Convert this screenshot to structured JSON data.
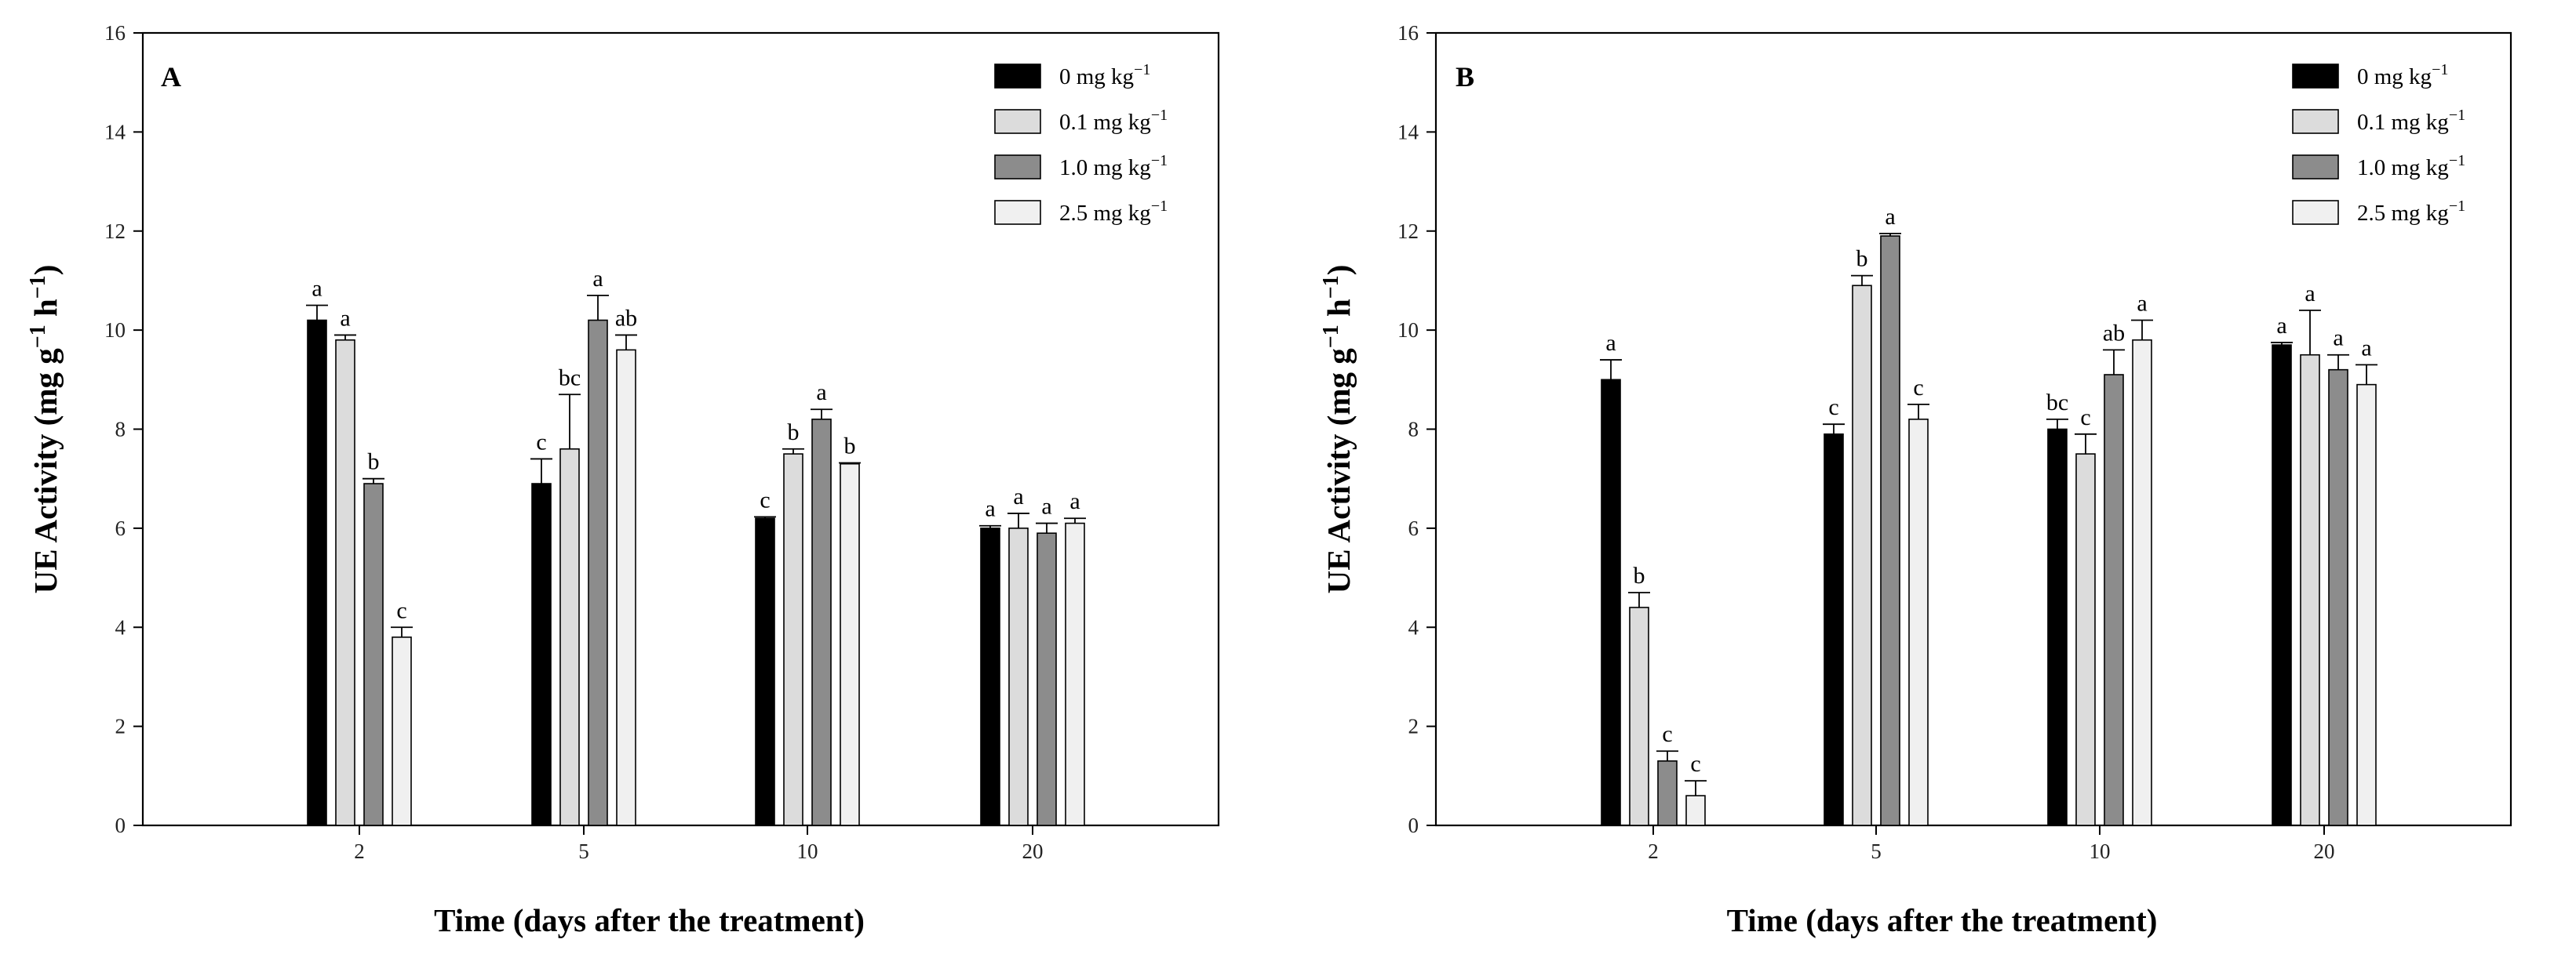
{
  "chart_data": [
    {
      "type": "bar",
      "panel": "A",
      "ylabel": "UE Activity (mg g",
      "ylabel_sup1": "−1",
      "ylabel_mid": " h",
      "ylabel_sup2": "−1",
      "ylabel_end": ")",
      "xlabel": "Time (days after the treatment)",
      "ylim": [
        0,
        16
      ],
      "yticks": [
        0,
        2,
        4,
        6,
        8,
        10,
        12,
        14,
        16
      ],
      "categories": [
        "2",
        "5",
        "10",
        "20"
      ],
      "legend_position": "top-right",
      "series": [
        {
          "name": "0 mg kg",
          "sup": "−1",
          "color": "#000000",
          "values": [
            10.2,
            6.9,
            6.2,
            6.0
          ],
          "errors": [
            0.3,
            0.5,
            0.03,
            0.05
          ],
          "letters": [
            "a",
            "c",
            "c",
            "a"
          ]
        },
        {
          "name": "0.1 mg kg",
          "sup": "−1",
          "color": "#dcdcdc",
          "values": [
            9.8,
            7.6,
            7.5,
            6.0
          ],
          "errors": [
            0.1,
            1.1,
            0.1,
            0.3
          ],
          "letters": [
            "a",
            "bc",
            "b",
            "a"
          ]
        },
        {
          "name": "1.0 mg kg",
          "sup": "−1",
          "color": "#8c8c8c",
          "values": [
            6.9,
            10.2,
            8.2,
            5.9
          ],
          "errors": [
            0.1,
            0.5,
            0.2,
            0.2
          ],
          "letters": [
            "b",
            "a",
            "a",
            "a"
          ]
        },
        {
          "name": "2.5 mg kg",
          "sup": "−1",
          "color": "#f0f0f0",
          "values": [
            3.8,
            9.6,
            7.3,
            6.1
          ],
          "errors": [
            0.2,
            0.3,
            0.02,
            0.1
          ],
          "letters": [
            "c",
            "ab",
            "b",
            "a"
          ]
        }
      ]
    },
    {
      "type": "bar",
      "panel": "B",
      "ylabel": "UE Activity (mg g",
      "ylabel_sup1": "−1",
      "ylabel_mid": " h",
      "ylabel_sup2": "−1",
      "ylabel_end": ")",
      "xlabel": "Time (days after the treatment)",
      "ylim": [
        0,
        16
      ],
      "yticks": [
        0,
        2,
        4,
        6,
        8,
        10,
        12,
        14,
        16
      ],
      "categories": [
        "2",
        "5",
        "10",
        "20"
      ],
      "legend_position": "top-right",
      "series": [
        {
          "name": "0 mg kg",
          "sup": "−1",
          "color": "#000000",
          "values": [
            9.0,
            7.9,
            8.0,
            9.7
          ],
          "errors": [
            0.4,
            0.2,
            0.2,
            0.05
          ],
          "letters": [
            "a",
            "c",
            "bc",
            "a"
          ]
        },
        {
          "name": "0.1 mg kg",
          "sup": "−1",
          "color": "#dcdcdc",
          "values": [
            4.4,
            10.9,
            7.5,
            9.5
          ],
          "errors": [
            0.3,
            0.2,
            0.4,
            0.9
          ],
          "letters": [
            "b",
            "b",
            "c",
            "a"
          ]
        },
        {
          "name": "1.0 mg kg",
          "sup": "−1",
          "color": "#8c8c8c",
          "values": [
            1.3,
            11.9,
            9.1,
            9.2
          ],
          "errors": [
            0.2,
            0.05,
            0.5,
            0.3
          ],
          "letters": [
            "c",
            "a",
            "ab",
            "a"
          ]
        },
        {
          "name": "2.5 mg kg",
          "sup": "−1",
          "color": "#f0f0f0",
          "values": [
            0.6,
            8.2,
            9.8,
            8.9
          ],
          "errors": [
            0.3,
            0.3,
            0.4,
            0.4
          ],
          "letters": [
            "c",
            "c",
            "a",
            "a"
          ]
        }
      ]
    }
  ]
}
